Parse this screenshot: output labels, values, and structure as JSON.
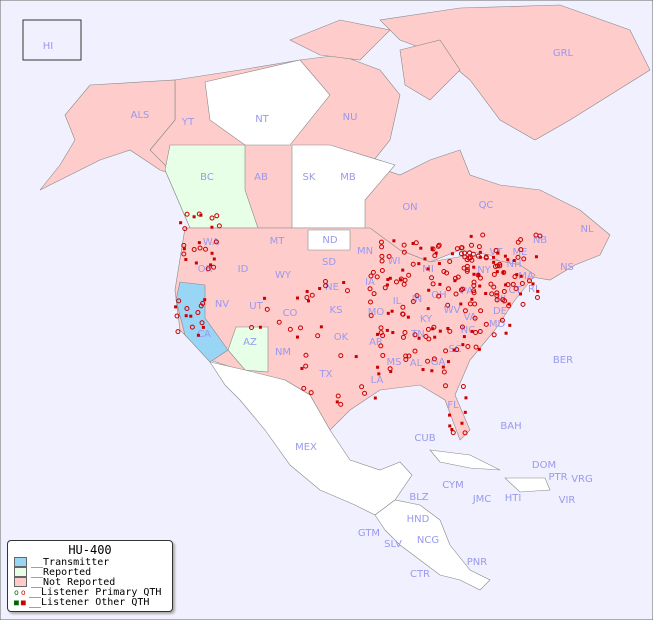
{
  "colors": {
    "ocean": "#f0f0ff",
    "transmitter": "#99d6f5",
    "reported": "#e6ffe6",
    "not_reported": "#ffcccc",
    "none": "#ffffff",
    "label": "#9999ee",
    "listener_primary_local": "#006600",
    "listener_primary": "#cc0000",
    "listener_other": "#cc0000"
  },
  "legend": {
    "title": "HU-400",
    "items": [
      {
        "label": "__Transmitter",
        "type": "transmitter"
      },
      {
        "label": "__Reported",
        "type": "reported"
      },
      {
        "label": "__Not Reported",
        "type": "not_reported"
      },
      {
        "label": "__Listener Primary QTH",
        "type": "primary"
      },
      {
        "label": "__Listener Other QTH",
        "type": "other"
      }
    ]
  },
  "regions": [
    "HI",
    "ALS",
    "YT",
    "NT",
    "NU",
    "GRL",
    "BC",
    "AB",
    "SK",
    "MB",
    "ON",
    "QC",
    "NL",
    "NS",
    "WA",
    "OR",
    "CA",
    "NV",
    "ID",
    "MT",
    "WY",
    "UT",
    "AZ",
    "CO",
    "NM",
    "ND",
    "SD",
    "NE",
    "KS",
    "OK",
    "TX",
    "MN",
    "IA",
    "MO",
    "AR",
    "LA",
    "WI",
    "IL",
    "MI",
    "IN",
    "OH",
    "KY",
    "TN",
    "MS",
    "AL",
    "GA",
    "FL",
    "SC",
    "NC",
    "VA",
    "WV",
    "PA",
    "NY",
    "VT",
    "NH",
    "ME",
    "MA",
    "CT",
    "RI",
    "NJ",
    "DE",
    "MD",
    "NB",
    "BER",
    "BAH",
    "CUB",
    "MEX",
    "CYM",
    "JMC",
    "HTI",
    "DOM",
    "PTR",
    "VRG",
    "VIR",
    "BLZ",
    "GTM",
    "HND",
    "SLV",
    "NCG",
    "CTR",
    "PNR"
  ]
}
